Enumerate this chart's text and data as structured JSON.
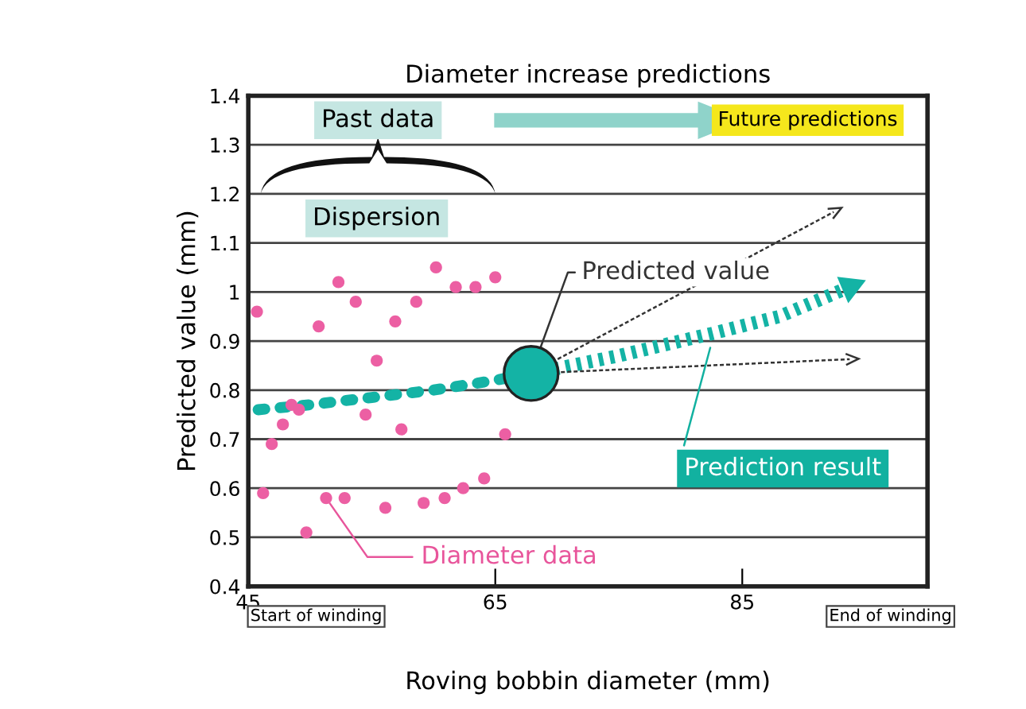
{
  "chart_data": {
    "type": "scatter",
    "title": "Diameter increase predictions",
    "xlabel": "Roving bobbin diameter (mm)",
    "ylabel": "Predicted value (mm)",
    "xlim": [
      45,
      100
    ],
    "xticks": [
      45,
      65,
      85
    ],
    "ylim": [
      0.4,
      1.4
    ],
    "yticks": [
      0.4,
      0.5,
      0.6,
      0.7,
      0.8,
      0.9,
      1,
      1.1,
      1.2,
      1.3,
      1.4
    ],
    "grid": "y",
    "legend": false,
    "series": [
      {
        "color": "#ec5fa3",
        "marker": "circle",
        "x": [
          45.7,
          46.2,
          46.9,
          47.8,
          48.5,
          49.1,
          49.7,
          50.7,
          51.3,
          52.3,
          52.8,
          53.7,
          54.5,
          55.4,
          56.1,
          56.9,
          57.4,
          58.6,
          59.2,
          60.2,
          60.9,
          61.8,
          62.4,
          63.4,
          64.1,
          65.0,
          65.8
        ],
        "values": [
          0.96,
          0.59,
          0.69,
          0.73,
          0.77,
          0.76,
          0.51,
          0.93,
          0.58,
          1.02,
          0.58,
          0.98,
          0.75,
          0.86,
          0.56,
          0.94,
          0.72,
          0.98,
          0.57,
          1.05,
          0.58,
          1.01,
          0.6,
          1.01,
          0.62,
          1.03,
          0.71
        ]
      },
      {
        "type": "line",
        "color": "#14b3a5",
        "line_style": "dotted",
        "marker": "none",
        "x": [
          45.8,
          50,
          55,
          60,
          65,
          66.2
        ],
        "values": [
          0.76,
          0.77,
          0.785,
          0.8,
          0.82,
          0.826
        ]
      },
      {
        "type": "bubble",
        "color": "#14b3a5",
        "x": [
          67.9
        ],
        "values": [
          0.834
        ],
        "sizes": [
          1
        ]
      },
      {
        "type": "line",
        "color": "#14b3a5",
        "line_style": "dotted",
        "marker": "none",
        "x": [
          69.8,
          75,
          82.5,
          88,
          93.7
        ],
        "values": [
          0.843,
          0.87,
          0.915,
          0.95,
          1.01
        ]
      },
      {
        "type": "line",
        "color": "#333333",
        "line_style": "dashed",
        "x": [
          69.6,
          92.4
        ],
        "values": [
          0.857,
          1.163
        ]
      },
      {
        "type": "line",
        "color": "#333333",
        "line_style": "dashed",
        "x": [
          69.8,
          93.7
        ],
        "values": [
          0.836,
          0.863
        ]
      }
    ],
    "annotations": [
      "Past data",
      "Future predictions",
      "Dispersion",
      {
        "text": "Predicted value",
        "x": 67.9,
        "y": 0.834
      },
      {
        "text": "Prediction result",
        "x": 82.5,
        "y": 0.915
      },
      {
        "text": "Diameter data",
        "x": 51.3,
        "y": 0.58
      },
      "Start of winding",
      "End of winding"
    ]
  }
}
